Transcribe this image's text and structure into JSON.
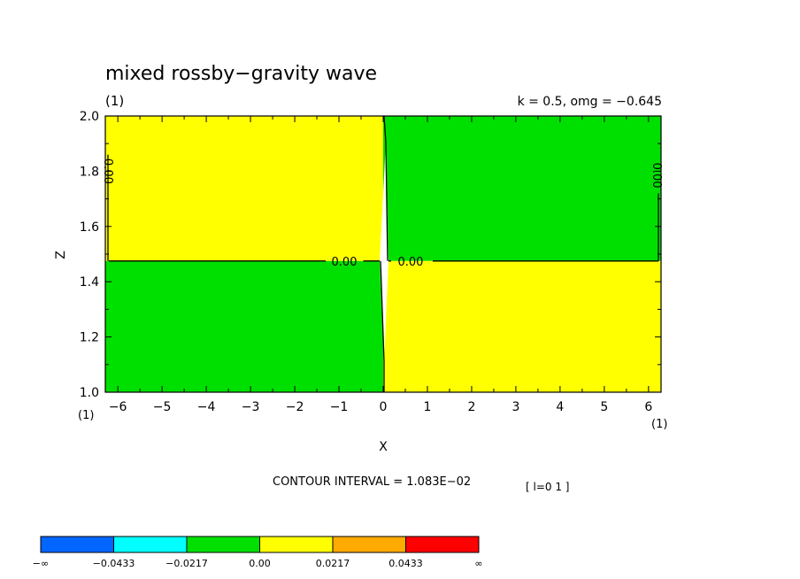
{
  "chart_data": {
    "type": "heatmap",
    "title": "mixed rossby−gravity wave",
    "panel_label": "(1)",
    "params_label": "k = 0.5, omg = −0.645",
    "xlabel": "X",
    "ylabel": "Z",
    "xlim": [
      -6.2832,
      6.2832
    ],
    "ylim": [
      1.0,
      2.0
    ],
    "xticks": [
      -6,
      -5,
      -4,
      -3,
      -2,
      -1,
      0,
      1,
      2,
      3,
      4,
      5,
      6
    ],
    "xtick_labels": [
      "−6",
      "−5",
      "−4",
      "−3",
      "−2",
      "−1",
      "0",
      "1",
      "2",
      "3",
      "4",
      "5",
      "6"
    ],
    "yticks": [
      1.0,
      1.2,
      1.4,
      1.6,
      1.8,
      2.0
    ],
    "ytick_labels": [
      "1.0",
      "1.2",
      "1.4",
      "1.6",
      "1.8",
      "2.0"
    ],
    "x_corner_left": "(1)",
    "x_corner_right": "(1)",
    "regions": [
      {
        "x": [
          -6.2832,
          0.0
        ],
        "z": [
          1.475,
          2.0
        ],
        "color": "#ffff00"
      },
      {
        "x": [
          0.0,
          6.2832
        ],
        "z": [
          1.475,
          2.0
        ],
        "color": "#00e000"
      },
      {
        "x": [
          -6.2832,
          0.0
        ],
        "z": [
          1.0,
          1.475
        ],
        "color": "#00e000"
      },
      {
        "x": [
          0.0,
          6.2832
        ],
        "z": [
          1.0,
          1.475
        ],
        "color": "#ffff00"
      }
    ],
    "zero_contour_z": 1.475,
    "contour_labels": [
      {
        "text": "0.00",
        "x": -0.88,
        "z": 1.475,
        "rotate": 0
      },
      {
        "text": "0.00",
        "x": 0.62,
        "z": 1.475,
        "rotate": 0
      },
      {
        "text": "0.00",
        "x": -6.2,
        "z": 1.8,
        "rotate": 90
      },
      {
        "text": "0.00",
        "x": 6.2,
        "z": 1.785,
        "rotate": 90
      }
    ],
    "contour_interval": "CONTOUR INTERVAL = 1.083E−02",
    "index_label": "[ l=0 1 ]",
    "colorbar": {
      "colors": [
        "#0066ff",
        "#00ffff",
        "#00e000",
        "#ffff00",
        "#ffaa00",
        "#ff0000"
      ],
      "labels": [
        "−∞",
        "−0.0433",
        "−0.0217",
        "0.00",
        "0.0217",
        "0.0433",
        "∞"
      ]
    }
  }
}
